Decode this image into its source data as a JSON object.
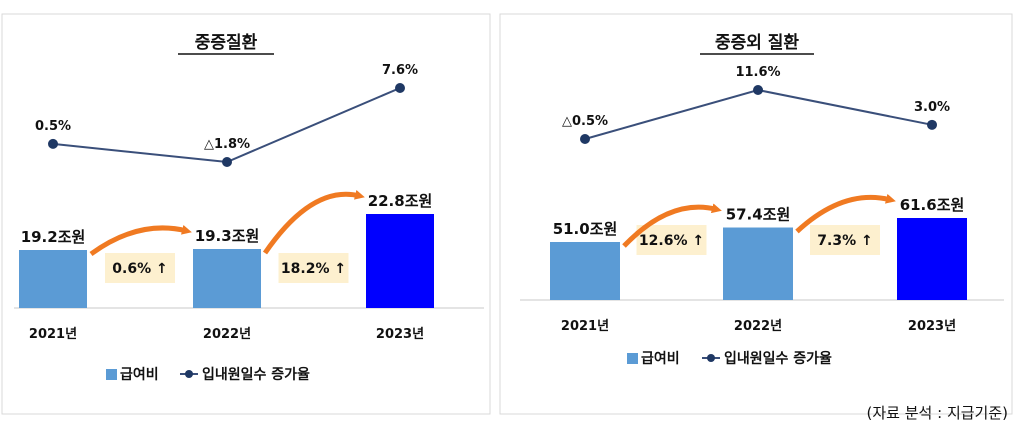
{
  "chart_data": [
    {
      "type": "bar+line",
      "title": "중증질환",
      "categories": [
        "2021년",
        "2022년",
        "2023년"
      ],
      "series": [
        {
          "name": "급여비",
          "type": "bar",
          "values": [
            19.2,
            19.3,
            22.8
          ],
          "labels": [
            "19.2조원",
            "19.3조원",
            "22.8조원"
          ]
        },
        {
          "name": "입내원일수 증가율",
          "type": "line",
          "values": [
            0.5,
            -1.8,
            7.6
          ],
          "labels": [
            "0.5%",
            "△1.8%",
            "7.6%"
          ]
        }
      ],
      "growth": [
        "0.6% ↑",
        "18.2% ↑"
      ]
    },
    {
      "type": "bar+line",
      "title": "중증외 질환",
      "categories": [
        "2021년",
        "2022년",
        "2023년"
      ],
      "series": [
        {
          "name": "급여비",
          "type": "bar",
          "values": [
            51.0,
            57.4,
            61.6
          ],
          "labels": [
            "51.0조원",
            "57.4조원",
            "61.6조원"
          ]
        },
        {
          "name": "입내원일수 증가율",
          "type": "line",
          "values": [
            -0.5,
            11.6,
            3.0
          ],
          "labels": [
            "△0.5%",
            "11.6%",
            "3.0%"
          ]
        }
      ],
      "growth": [
        "12.6% ↑",
        "7.3% ↑"
      ]
    }
  ],
  "legend": {
    "bar": "급여비",
    "line": "입내원일수 증가율"
  },
  "source": "(자료 분석 : 지급기준)",
  "colors": {
    "bar_light": "#5b9bd5",
    "bar_highlight": "#0000ff",
    "line": "#3a4f7a",
    "marker": "#1f3864",
    "arrow": "#f07a22",
    "growth_bg": "#fdf0cf",
    "axis": "#c8c8c8",
    "panel_border": "#d9d9d9"
  }
}
